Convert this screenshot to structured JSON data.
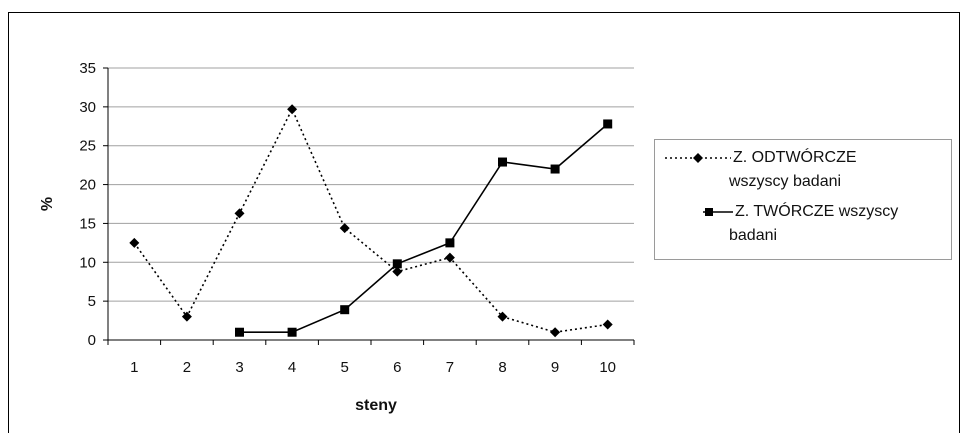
{
  "chart_data": {
    "type": "line",
    "x": [
      1,
      2,
      3,
      4,
      5,
      6,
      7,
      8,
      9,
      10
    ],
    "xlabel": "steny",
    "ylabel": "%",
    "ylim": [
      0,
      35
    ],
    "yticks": [
      0,
      5,
      10,
      15,
      20,
      25,
      30,
      35
    ],
    "grid": "horizontal",
    "legend_position": "right",
    "series": [
      {
        "name": "Z. ODTWÓRCZE wszyscy badani",
        "name_lines": [
          "Z. ODTWÓRCZE",
          "wszyscy badani"
        ],
        "style": "dotted",
        "marker": "diamond",
        "color": "#000000",
        "values": [
          12.5,
          3,
          16.3,
          29.7,
          14.4,
          8.8,
          10.6,
          3,
          1,
          2
        ]
      },
      {
        "name": "Z. TWÓRCZE wszyscy badani",
        "name_lines": [
          "Z. TWÓRCZE wszyscy",
          "badani"
        ],
        "style": "solid",
        "marker": "square",
        "color": "#000000",
        "values": [
          null,
          null,
          1,
          1,
          3.9,
          9.8,
          12.5,
          22.9,
          22,
          27.8
        ]
      }
    ]
  }
}
